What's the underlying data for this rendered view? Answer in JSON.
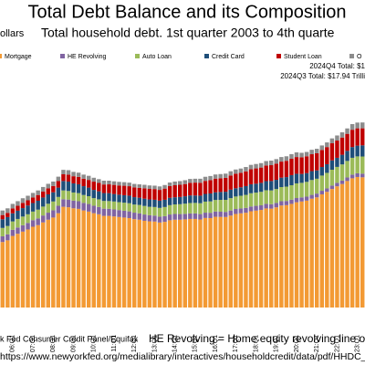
{
  "chart_data": {
    "type": "stacked_bar",
    "title": "Total Debt Balance and its Composition",
    "subtitle": "Total household debt. 1st quarter 2003 to 4th quarte",
    "y_label": "ollars",
    "annotations": [
      "2024Q4 Total: $1",
      "2024Q3 Total: $17.94 Trilli"
    ],
    "source": "k Fed Consumer Credit Panel/Equifax",
    "note": "HE Revolving = Home equity revolving line o",
    "url": "https://www.newyorkfed.org/medialibrary/interactives/householdcredit/data/pdf/HHDC_2024",
    "ylim": [
      0,
      25
    ],
    "categories": [
      null,
      null,
      "06:Q1",
      null,
      null,
      null,
      "07:Q1",
      null,
      null,
      null,
      "08:Q1",
      null,
      null,
      null,
      "09:Q1",
      null,
      null,
      null,
      "10:Q1",
      null,
      null,
      null,
      "11:Q1",
      null,
      null,
      null,
      "12:Q1",
      null,
      null,
      null,
      "13:Q1",
      null,
      null,
      null,
      "14:Q1",
      null,
      null,
      null,
      "15:Q1",
      null,
      null,
      null,
      "16:Q1",
      null,
      null,
      null,
      "17:Q1",
      null,
      null,
      null,
      "18:Q1",
      null,
      null,
      null,
      "19:Q1",
      null,
      null,
      null,
      "20:Q1",
      null,
      null,
      null,
      "21:Q1",
      null,
      null,
      null,
      "22:Q1",
      null,
      null,
      null,
      "23:Q1",
      null
    ],
    "series": [
      {
        "name": "Mortgage",
        "color": "#f39a34",
        "values": [
          6.04,
          6.2,
          6.6,
          6.8,
          7.0,
          7.2,
          7.45,
          7.6,
          7.85,
          8.1,
          8.3,
          8.7,
          9.29,
          9.25,
          9.15,
          9.1,
          8.95,
          8.85,
          8.7,
          8.6,
          8.45,
          8.45,
          8.4,
          8.35,
          8.3,
          8.25,
          8.15,
          8.1,
          8.0,
          7.95,
          7.93,
          7.84,
          7.9,
          8.05,
          8.1,
          8.1,
          8.13,
          8.17,
          8.17,
          8.12,
          8.26,
          8.25,
          8.37,
          8.36,
          8.35,
          8.48,
          8.63,
          8.69,
          8.74,
          8.88,
          8.94,
          9.0,
          9.14,
          9.12,
          9.24,
          9.41,
          9.44,
          9.56,
          9.71,
          9.78,
          9.86,
          10.04,
          10.16,
          10.44,
          10.67,
          10.93,
          11.18,
          11.39,
          11.67,
          11.92,
          12.04,
          12.01
        ]
      },
      {
        "name": "HE Revolving",
        "color": "#8064a2",
        "values": [
          0.53,
          0.55,
          0.57,
          0.58,
          0.59,
          0.6,
          0.61,
          0.62,
          0.64,
          0.65,
          0.67,
          0.69,
          0.7,
          0.71,
          0.71,
          0.71,
          0.7,
          0.7,
          0.69,
          0.68,
          0.67,
          0.66,
          0.65,
          0.64,
          0.63,
          0.62,
          0.6,
          0.59,
          0.58,
          0.56,
          0.55,
          0.54,
          0.53,
          0.53,
          0.53,
          0.52,
          0.51,
          0.51,
          0.51,
          0.5,
          0.49,
          0.49,
          0.49,
          0.48,
          0.47,
          0.47,
          0.46,
          0.45,
          0.45,
          0.44,
          0.44,
          0.43,
          0.42,
          0.41,
          0.41,
          0.4,
          0.39,
          0.39,
          0.39,
          0.38,
          0.37,
          0.35,
          0.35,
          0.33,
          0.32,
          0.32,
          0.32,
          0.32,
          0.33,
          0.34,
          0.34,
          0.34
        ]
      },
      {
        "name": "Auto Loan",
        "color": "#9bbb59",
        "values": [
          0.77,
          0.77,
          0.77,
          0.79,
          0.8,
          0.8,
          0.79,
          0.81,
          0.82,
          0.82,
          0.81,
          0.81,
          0.81,
          0.79,
          0.75,
          0.74,
          0.73,
          0.72,
          0.7,
          0.7,
          0.71,
          0.71,
          0.73,
          0.73,
          0.74,
          0.75,
          0.75,
          0.77,
          0.79,
          0.78,
          0.79,
          0.81,
          0.84,
          0.86,
          0.88,
          0.91,
          0.94,
          0.96,
          0.97,
          1.0,
          1.02,
          1.05,
          1.06,
          1.09,
          1.11,
          1.14,
          1.15,
          1.17,
          1.2,
          1.22,
          1.22,
          1.24,
          1.26,
          1.27,
          1.28,
          1.3,
          1.32,
          1.33,
          1.35,
          1.34,
          1.36,
          1.37,
          1.37,
          1.4,
          1.43,
          1.46,
          1.47,
          1.49,
          1.52,
          1.55,
          1.56,
          1.58
        ]
      },
      {
        "name": "Credit Card",
        "color": "#1f4e79",
        "values": [
          0.8,
          0.82,
          0.75,
          0.76,
          0.78,
          0.81,
          0.79,
          0.82,
          0.84,
          0.87,
          0.85,
          0.86,
          0.87,
          0.87,
          0.84,
          0.82,
          0.81,
          0.79,
          0.76,
          0.74,
          0.73,
          0.73,
          0.69,
          0.69,
          0.69,
          0.7,
          0.68,
          0.67,
          0.67,
          0.68,
          0.67,
          0.67,
          0.67,
          0.68,
          0.66,
          0.67,
          0.68,
          0.7,
          0.68,
          0.7,
          0.71,
          0.73,
          0.71,
          0.73,
          0.75,
          0.78,
          0.76,
          0.78,
          0.81,
          0.83,
          0.82,
          0.83,
          0.84,
          0.87,
          0.85,
          0.87,
          0.88,
          0.93,
          0.89,
          0.82,
          0.81,
          0.82,
          0.77,
          0.79,
          0.8,
          0.86,
          0.84,
          0.89,
          0.93,
          0.99,
          0.99,
          1.03
        ]
      },
      {
        "name": "Student Loan",
        "color": "#c00000",
        "values": [
          0.39,
          0.39,
          0.45,
          0.46,
          0.48,
          0.48,
          0.51,
          0.53,
          0.55,
          0.55,
          0.58,
          0.6,
          0.62,
          0.64,
          0.66,
          0.68,
          0.69,
          0.71,
          0.76,
          0.77,
          0.79,
          0.81,
          0.84,
          0.85,
          0.87,
          0.87,
          0.9,
          0.91,
          0.96,
          0.97,
          0.99,
          0.99,
          1.03,
          1.08,
          1.11,
          1.12,
          1.13,
          1.16,
          1.19,
          1.19,
          1.2,
          1.23,
          1.26,
          1.26,
          1.28,
          1.31,
          1.34,
          1.34,
          1.36,
          1.38,
          1.41,
          1.41,
          1.44,
          1.46,
          1.49,
          1.48,
          1.5,
          1.51,
          1.54,
          1.54,
          1.55,
          1.56,
          1.58,
          1.57,
          1.58,
          1.58,
          1.59,
          1.59,
          1.57,
          1.6,
          1.6,
          1.57
        ]
      },
      {
        "name": "O",
        "color": "#8c8c8c",
        "values": [
          0.42,
          0.42,
          0.42,
          0.42,
          0.43,
          0.42,
          0.42,
          0.42,
          0.42,
          0.42,
          0.41,
          0.41,
          0.41,
          0.41,
          0.4,
          0.39,
          0.38,
          0.38,
          0.36,
          0.35,
          0.35,
          0.34,
          0.33,
          0.33,
          0.33,
          0.33,
          0.32,
          0.32,
          0.32,
          0.32,
          0.31,
          0.32,
          0.33,
          0.33,
          0.34,
          0.34,
          0.35,
          0.36,
          0.36,
          0.37,
          0.38,
          0.38,
          0.38,
          0.39,
          0.39,
          0.39,
          0.39,
          0.39,
          0.4,
          0.41,
          0.41,
          0.41,
          0.41,
          0.42,
          0.42,
          0.42,
          0.42,
          0.43,
          0.43,
          0.41,
          0.4,
          0.41,
          0.41,
          0.42,
          0.43,
          0.45,
          0.47,
          0.48,
          0.5,
          0.52,
          0.53,
          0.54
        ]
      }
    ]
  }
}
